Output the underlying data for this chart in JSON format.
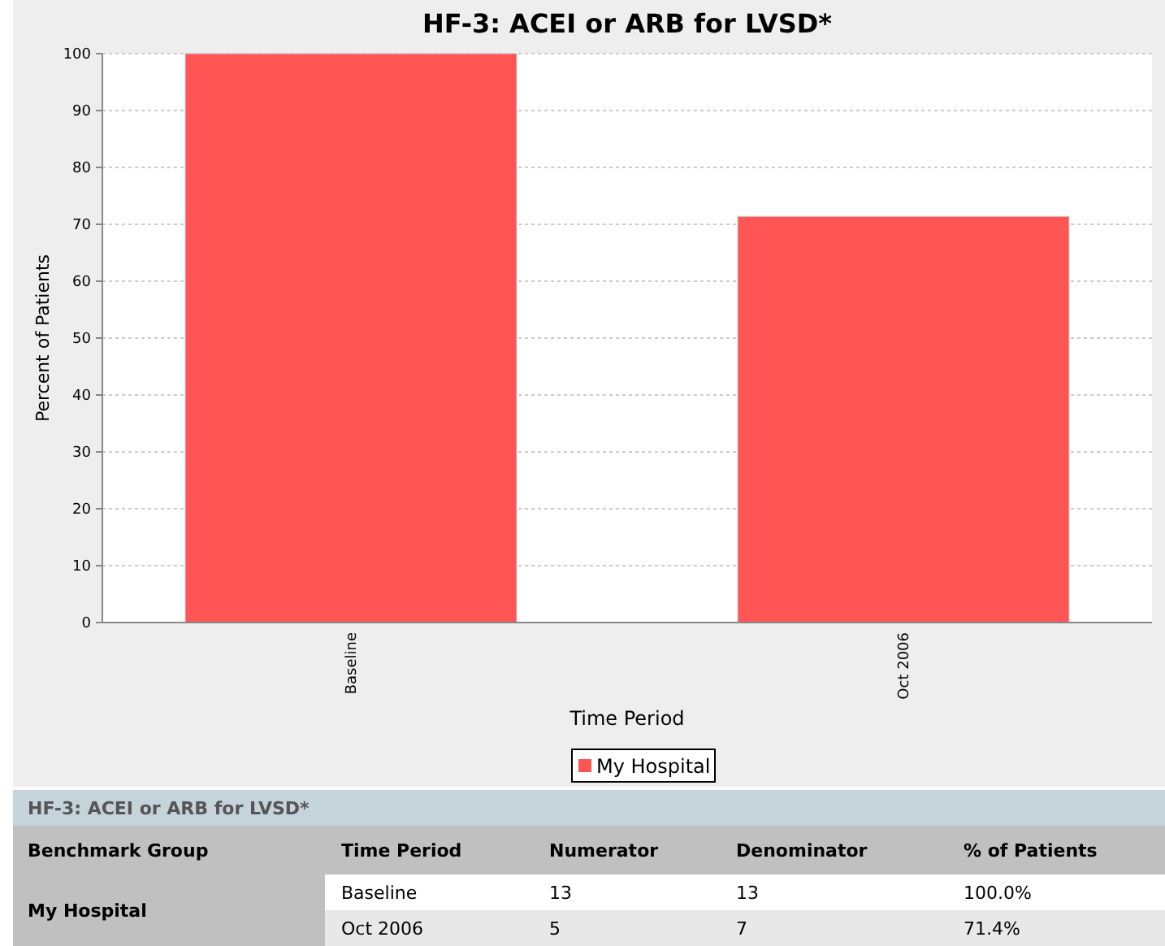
{
  "chart_data": [
    {
      "type": "bar",
      "title": "HF-3: ACEI or ARB for LVSD*",
      "xlabel": "Time Period",
      "ylabel": "Percent of Patients",
      "categories": [
        "Baseline",
        "Oct 2006"
      ],
      "series": [
        {
          "name": "My Hospital",
          "color": "#ff5555",
          "values": [
            100,
            71.4
          ]
        }
      ],
      "ylim": [
        0,
        100
      ],
      "yticks": [
        0,
        10,
        20,
        30,
        40,
        50,
        60,
        70,
        80,
        90,
        100
      ],
      "grid": "y",
      "legend": "bottom"
    },
    {
      "type": "other",
      "title": "HF-3: ACEI or ARB for LVSD*",
      "categories": [
        "Benchmark Group",
        "Time Period",
        "Numerator",
        "Denominator",
        "% of Patients"
      ],
      "cell_labels": [
        [
          "My Hospital",
          "Baseline",
          "13",
          "13",
          "100.0%"
        ],
        [
          null,
          "Oct 2006",
          "5",
          "7",
          "71.4%"
        ]
      ]
    }
  ]
}
